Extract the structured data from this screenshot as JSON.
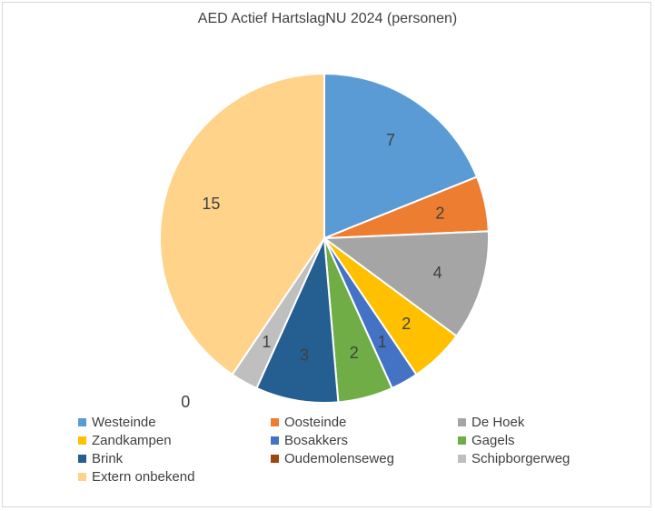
{
  "chart_data": {
    "type": "pie",
    "title": "AED Actief HartslagNU 2024 (personen)",
    "categories": [
      "Westeinde",
      "Oosteinde",
      "De Hoek",
      "Zandkampen",
      "Bosakkers",
      "Gagels",
      "Brink",
      "Oudemolenseweg",
      "Schipborgerweg",
      "Extern onbekend"
    ],
    "values": [
      7,
      2,
      4,
      2,
      1,
      2,
      3,
      0,
      1,
      15
    ],
    "colors": [
      "#5b9bd5",
      "#ed7d31",
      "#a5a5a5",
      "#ffc000",
      "#4472c4",
      "#70ad47",
      "#255e91",
      "#9e480e",
      "#bfbfbf",
      "#ffd38a"
    ],
    "legend_position": "bottom"
  }
}
